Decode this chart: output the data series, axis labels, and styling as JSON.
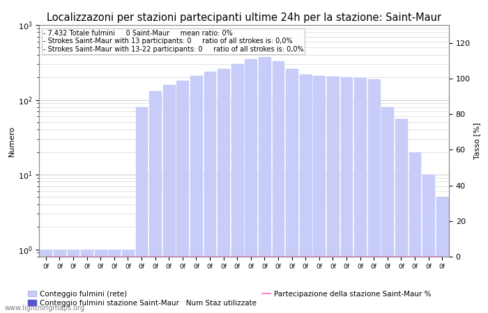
{
  "title": "Localizzazoni per stazioni partecipanti ultime 24h per la stazione: Saint-Maur",
  "ylabel_left": "Numero",
  "ylabel_right": "Tasso [%]",
  "info_lines": [
    "- 7.432 Totale fulmini     0 Saint-Maur     mean ratio: 0%",
    "- Strokes Saint-Maur with 13 participants: 0     ratio of all strokes is: 0,0%",
    "- Strokes Saint-Maur with 13-22 participants: 0     ratio of all strokes is: 0,0%"
  ],
  "num_bars": 30,
  "bar_values": [
    1,
    1,
    1,
    1,
    1,
    1,
    1,
    80,
    130,
    160,
    180,
    210,
    240,
    260,
    300,
    350,
    370,
    330,
    260,
    220,
    210,
    205,
    200,
    195,
    190,
    80,
    55,
    20,
    10,
    5
  ],
  "bar_color_light": "#c8ccf8",
  "bar_color_dark": "#5555cc",
  "line_color": "#ff88cc",
  "background_color": "#ffffff",
  "grid_color": "#cccccc",
  "watermark": "www.lightningmaps.org",
  "legend_label_1": "Conteggio fulmini (rete)",
  "legend_label_2": "Conteggio fulmini stazione Saint-Maur",
  "legend_label_3": "Num Staz utilizzate",
  "legend_label_4": "Partecipazione della stazione Saint-Maur %",
  "yticks_right": [
    0,
    20,
    40,
    60,
    80,
    100,
    120
  ],
  "ymin": 0.8,
  "ymax": 1000,
  "title_fontsize": 10.5,
  "info_fontsize": 7,
  "axis_fontsize": 8
}
